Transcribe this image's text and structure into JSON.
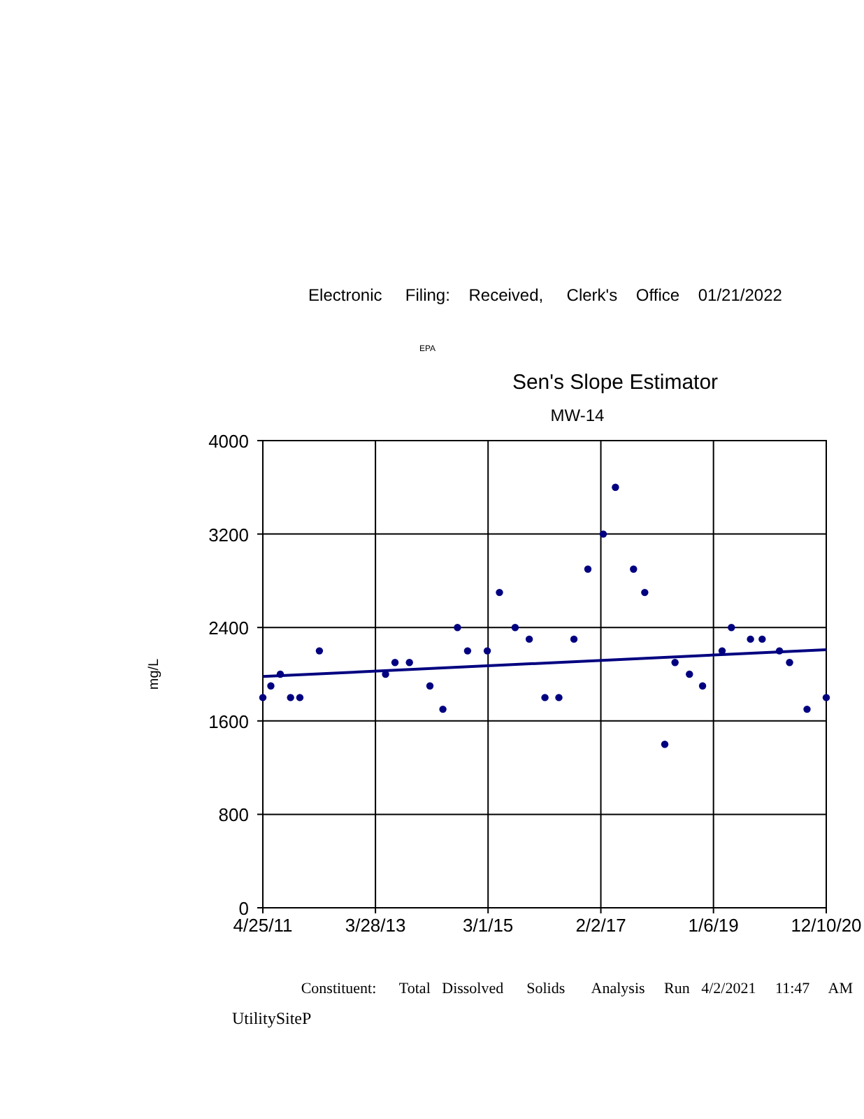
{
  "chart_data": {
    "type": "scatter",
    "title": "Sen's Slope Estimator",
    "subtitle": "MW-14",
    "ylabel": "mg/L",
    "annotations": [
      "Electronic     Filing:    Received,     Clerk's    Office    01/21/2022",
      "EPA",
      "Constituent:      Total   Dissolved      Solids       Analysis     Run   4/2/2021     11:47     AM",
      "UtilitySiteP"
    ],
    "xlim": [
      "2011-04-25",
      "2020-12-10"
    ],
    "xticks": [
      {
        "value": "2011-04-25",
        "label": "4/25/11"
      },
      {
        "value": "2013-03-28",
        "label": "3/28/13"
      },
      {
        "value": "2015-03-01",
        "label": "3/1/15"
      },
      {
        "value": "2017-02-02",
        "label": "2/2/17"
      },
      {
        "value": "2019-01-06",
        "label": "1/6/19"
      },
      {
        "value": "2020-12-10",
        "label": "12/10/20"
      }
    ],
    "ylim": [
      0,
      4000
    ],
    "yticks": [
      0,
      800,
      1600,
      2400,
      3200,
      4000
    ],
    "grid": true,
    "series": [
      {
        "marker": "circle",
        "color": "#000080",
        "x": [
          "2011-04-25",
          "2011-06-14",
          "2011-08-12",
          "2011-10-15",
          "2011-12-12",
          "2012-04-12",
          "2013-05-30",
          "2013-07-28",
          "2013-10-26",
          "2014-03-03",
          "2014-05-23",
          "2014-08-22",
          "2014-10-24",
          "2015-02-24",
          "2015-05-11",
          "2015-08-17",
          "2015-11-13",
          "2016-02-19",
          "2016-05-16",
          "2016-08-18",
          "2016-11-13",
          "2017-02-17",
          "2017-05-04",
          "2017-08-25",
          "2017-11-03",
          "2018-03-08",
          "2018-05-11",
          "2018-08-09",
          "2018-10-30",
          "2019-03-01",
          "2019-04-28",
          "2019-08-25",
          "2019-11-06",
          "2020-02-22",
          "2020-04-25",
          "2020-08-12",
          "2020-12-10"
        ],
        "values": [
          1800,
          1900,
          2000,
          1800,
          1800,
          2200,
          2000,
          2100,
          2100,
          1900,
          1700,
          2400,
          2200,
          2200,
          2700,
          2400,
          2300,
          1800,
          1800,
          2300,
          2900,
          3200,
          3600,
          2900,
          2700,
          1400,
          2100,
          2000,
          1900,
          2200,
          2400,
          2300,
          2300,
          2200,
          2100,
          1700,
          1800
        ]
      },
      {
        "type": "line",
        "marker": "none",
        "color": "#000080",
        "x": [
          "2011-04-25",
          "2020-12-10"
        ],
        "values": [
          1980,
          2210
        ]
      }
    ]
  }
}
